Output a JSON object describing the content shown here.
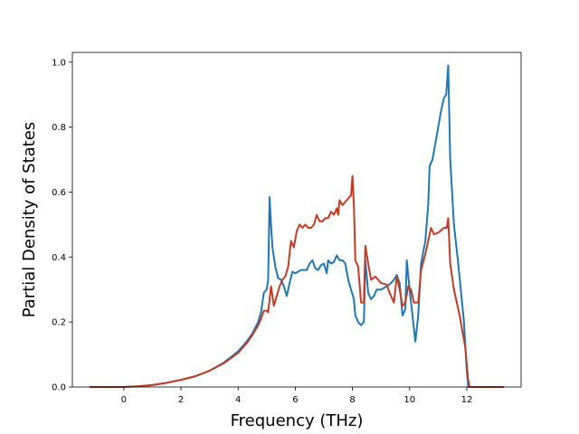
{
  "chart_data": {
    "type": "line",
    "title": "",
    "xlabel": "Frequency (THz)",
    "ylabel": "Partial Density of States",
    "xlim": [
      -1.8,
      13.9
    ],
    "ylim": [
      0.0,
      1.03
    ],
    "xticks": [
      0,
      2,
      4,
      6,
      8,
      10,
      12
    ],
    "yticks": [
      0.0,
      0.2,
      0.4,
      0.6,
      0.8,
      1.0
    ],
    "xtick_labels": [
      "0",
      "2",
      "4",
      "6",
      "8",
      "10",
      "12"
    ],
    "ytick_labels": [
      "0.0",
      "0.2",
      "0.4",
      "0.6",
      "0.8",
      "1.0"
    ],
    "grid": false,
    "legend": "none",
    "series": [
      {
        "color": "#1f77b4",
        "points": [
          [
            -1.2,
            0.0
          ],
          [
            0.0,
            0.0
          ],
          [
            0.5,
            0.002
          ],
          [
            1.0,
            0.006
          ],
          [
            1.5,
            0.013
          ],
          [
            2.0,
            0.022
          ],
          [
            2.5,
            0.033
          ],
          [
            3.0,
            0.05
          ],
          [
            3.5,
            0.075
          ],
          [
            4.0,
            0.11
          ],
          [
            4.3,
            0.14
          ],
          [
            4.5,
            0.165
          ],
          [
            4.7,
            0.2
          ],
          [
            4.8,
            0.23
          ],
          [
            4.9,
            0.29
          ],
          [
            5.0,
            0.3
          ],
          [
            5.05,
            0.33
          ],
          [
            5.1,
            0.585
          ],
          [
            5.15,
            0.5
          ],
          [
            5.2,
            0.43
          ],
          [
            5.3,
            0.37
          ],
          [
            5.4,
            0.335
          ],
          [
            5.5,
            0.33
          ],
          [
            5.6,
            0.31
          ],
          [
            5.7,
            0.28
          ],
          [
            5.8,
            0.32
          ],
          [
            5.9,
            0.355
          ],
          [
            6.0,
            0.35
          ],
          [
            6.2,
            0.36
          ],
          [
            6.4,
            0.36
          ],
          [
            6.5,
            0.38
          ],
          [
            6.6,
            0.39
          ],
          [
            6.7,
            0.365
          ],
          [
            6.8,
            0.36
          ],
          [
            6.9,
            0.375
          ],
          [
            7.0,
            0.38
          ],
          [
            7.1,
            0.35
          ],
          [
            7.15,
            0.39
          ],
          [
            7.25,
            0.38
          ],
          [
            7.35,
            0.385
          ],
          [
            7.45,
            0.405
          ],
          [
            7.55,
            0.39
          ],
          [
            7.65,
            0.39
          ],
          [
            7.75,
            0.38
          ],
          [
            7.85,
            0.33
          ],
          [
            7.95,
            0.3
          ],
          [
            8.05,
            0.27
          ],
          [
            8.1,
            0.22
          ],
          [
            8.2,
            0.2
          ],
          [
            8.3,
            0.19
          ],
          [
            8.4,
            0.2
          ],
          [
            8.45,
            0.39
          ],
          [
            8.55,
            0.29
          ],
          [
            8.65,
            0.27
          ],
          [
            8.75,
            0.28
          ],
          [
            8.85,
            0.3
          ],
          [
            9.0,
            0.3
          ],
          [
            9.2,
            0.31
          ],
          [
            9.35,
            0.32
          ],
          [
            9.45,
            0.33
          ],
          [
            9.55,
            0.345
          ],
          [
            9.65,
            0.32
          ],
          [
            9.75,
            0.22
          ],
          [
            9.85,
            0.24
          ],
          [
            9.9,
            0.39
          ],
          [
            10.0,
            0.3
          ],
          [
            10.1,
            0.22
          ],
          [
            10.2,
            0.14
          ],
          [
            10.3,
            0.22
          ],
          [
            10.4,
            0.38
          ],
          [
            10.55,
            0.45
          ],
          [
            10.65,
            0.56
          ],
          [
            10.7,
            0.68
          ],
          [
            10.8,
            0.7
          ],
          [
            11.0,
            0.8
          ],
          [
            11.1,
            0.85
          ],
          [
            11.2,
            0.89
          ],
          [
            11.28,
            0.9
          ],
          [
            11.35,
            0.99
          ],
          [
            11.42,
            0.7
          ],
          [
            11.55,
            0.5
          ],
          [
            11.7,
            0.38
          ],
          [
            11.9,
            0.2
          ],
          [
            12.0,
            0.05
          ],
          [
            12.05,
            0.0
          ],
          [
            13.3,
            0.0
          ]
        ]
      },
      {
        "color": "#c23b22",
        "points": [
          [
            -1.2,
            0.0
          ],
          [
            0.0,
            0.0
          ],
          [
            0.5,
            0.002
          ],
          [
            1.0,
            0.006
          ],
          [
            1.5,
            0.013
          ],
          [
            2.0,
            0.022
          ],
          [
            2.5,
            0.033
          ],
          [
            3.0,
            0.05
          ],
          [
            3.5,
            0.073
          ],
          [
            4.0,
            0.105
          ],
          [
            4.3,
            0.135
          ],
          [
            4.5,
            0.16
          ],
          [
            4.7,
            0.19
          ],
          [
            4.8,
            0.21
          ],
          [
            4.9,
            0.235
          ],
          [
            5.0,
            0.235
          ],
          [
            5.05,
            0.23
          ],
          [
            5.15,
            0.31
          ],
          [
            5.25,
            0.25
          ],
          [
            5.35,
            0.28
          ],
          [
            5.45,
            0.31
          ],
          [
            5.55,
            0.33
          ],
          [
            5.65,
            0.34
          ],
          [
            5.75,
            0.37
          ],
          [
            5.85,
            0.45
          ],
          [
            5.95,
            0.43
          ],
          [
            6.05,
            0.48
          ],
          [
            6.15,
            0.5
          ],
          [
            6.25,
            0.49
          ],
          [
            6.35,
            0.5
          ],
          [
            6.45,
            0.49
          ],
          [
            6.55,
            0.49
          ],
          [
            6.65,
            0.5
          ],
          [
            6.75,
            0.53
          ],
          [
            6.85,
            0.51
          ],
          [
            6.95,
            0.51
          ],
          [
            7.05,
            0.52
          ],
          [
            7.15,
            0.52
          ],
          [
            7.25,
            0.54
          ],
          [
            7.35,
            0.53
          ],
          [
            7.45,
            0.55
          ],
          [
            7.5,
            0.53
          ],
          [
            7.55,
            0.575
          ],
          [
            7.65,
            0.56
          ],
          [
            7.75,
            0.57
          ],
          [
            7.85,
            0.58
          ],
          [
            7.95,
            0.59
          ],
          [
            8.0,
            0.65
          ],
          [
            8.05,
            0.56
          ],
          [
            8.1,
            0.39
          ],
          [
            8.2,
            0.37
          ],
          [
            8.3,
            0.26
          ],
          [
            8.4,
            0.26
          ],
          [
            8.45,
            0.435
          ],
          [
            8.55,
            0.38
          ],
          [
            8.65,
            0.33
          ],
          [
            8.8,
            0.34
          ],
          [
            9.0,
            0.32
          ],
          [
            9.2,
            0.315
          ],
          [
            9.3,
            0.29
          ],
          [
            9.45,
            0.26
          ],
          [
            9.55,
            0.34
          ],
          [
            9.65,
            0.3
          ],
          [
            9.75,
            0.25
          ],
          [
            9.85,
            0.26
          ],
          [
            9.95,
            0.31
          ],
          [
            10.05,
            0.3
          ],
          [
            10.15,
            0.26
          ],
          [
            10.3,
            0.26
          ],
          [
            10.4,
            0.36
          ],
          [
            10.55,
            0.41
          ],
          [
            10.65,
            0.45
          ],
          [
            10.75,
            0.49
          ],
          [
            10.85,
            0.47
          ],
          [
            11.0,
            0.475
          ],
          [
            11.2,
            0.49
          ],
          [
            11.3,
            0.49
          ],
          [
            11.35,
            0.52
          ],
          [
            11.42,
            0.38
          ],
          [
            11.55,
            0.3
          ],
          [
            11.75,
            0.22
          ],
          [
            11.95,
            0.12
          ],
          [
            12.05,
            0.02
          ],
          [
            12.1,
            0.0
          ],
          [
            13.3,
            0.0
          ]
        ]
      }
    ]
  }
}
